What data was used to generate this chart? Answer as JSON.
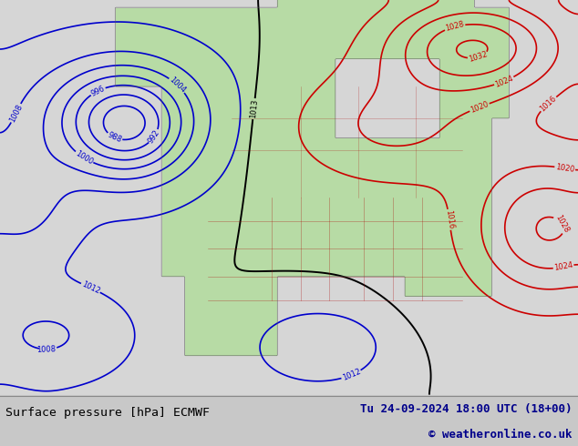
{
  "title_left": "Surface pressure [hPa] ECMWF",
  "title_right": "Tu 24-09-2024 18:00 UTC (18+00)",
  "copyright": "© weatheronline.co.uk",
  "bg_color": "#c8c8c8",
  "land_color": "#b8dba8",
  "ocean_color": "#d8d8d8",
  "footer_bg": "#d8d8d8",
  "footer_text_color": "#00008b",
  "title_text_color": "#000000",
  "blue_line_color": "#0000cc",
  "red_line_color": "#cc0000",
  "black_line_color": "#000000",
  "figsize": [
    6.34,
    4.9
  ],
  "dpi": 100
}
